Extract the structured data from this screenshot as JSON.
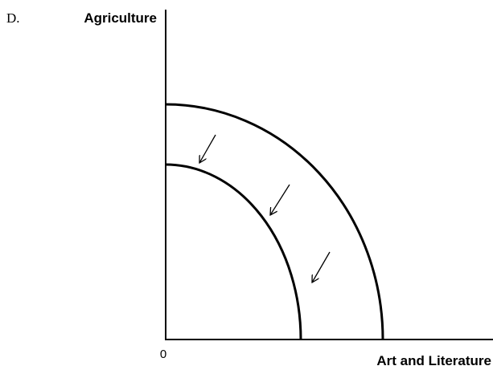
{
  "label": "D.",
  "y_axis_label": "Agriculture",
  "origin_label": "0",
  "x_axis_label": "Art and Literature"
}
